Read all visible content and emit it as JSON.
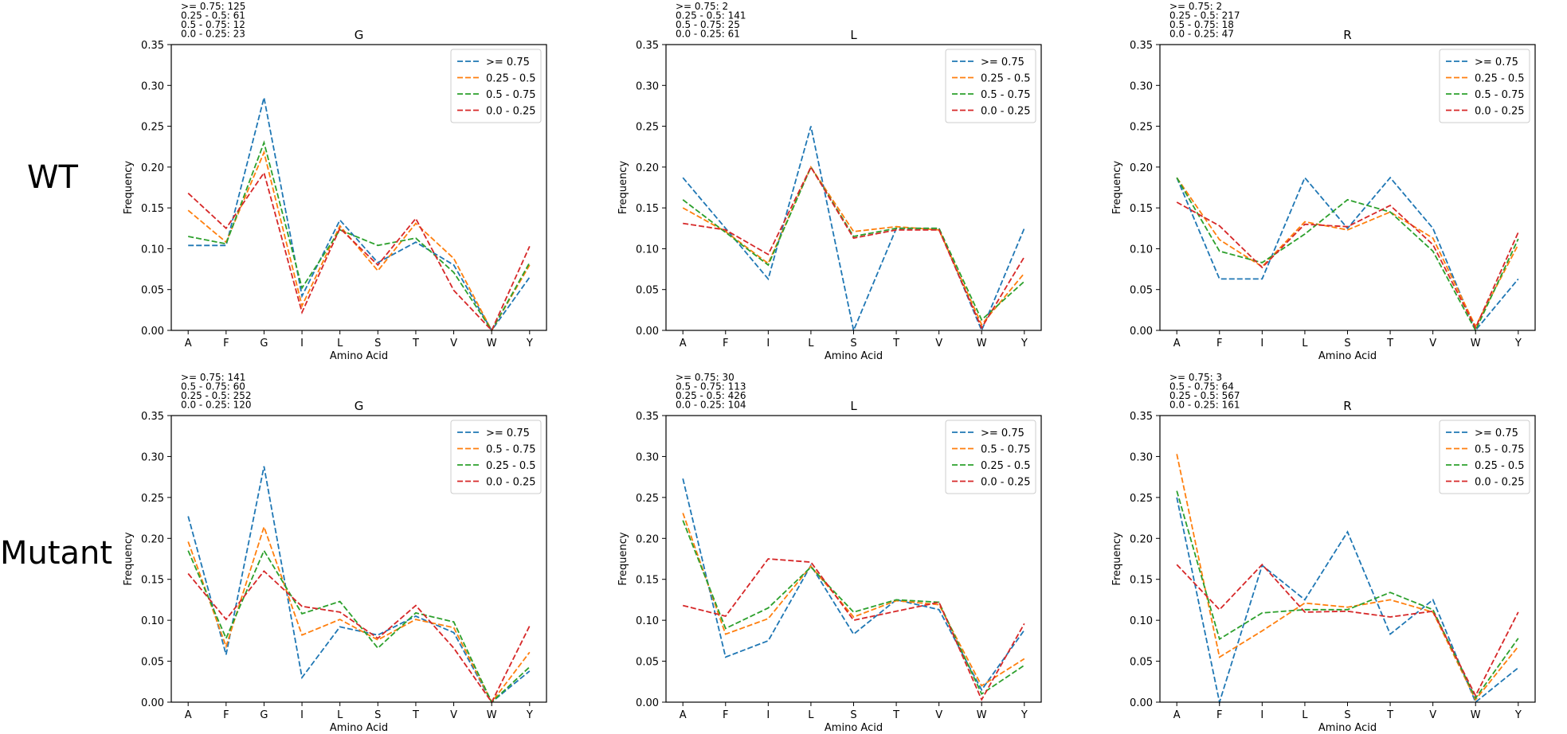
{
  "row_labels": [
    "WT",
    "Mutant"
  ],
  "colors": {
    "blue": "#1f77b4",
    "orange": "#ff7f0e",
    "green": "#2ca02c",
    "red": "#d62728"
  },
  "chart_data": [
    {
      "type": "line",
      "title": "G",
      "xlabel": "Amino Acid",
      "ylabel": "Frequency",
      "ylim": [
        0,
        0.35
      ],
      "yticks": [
        "0.00",
        "0.05",
        "0.10",
        "0.15",
        "0.20",
        "0.25",
        "0.30",
        "0.35"
      ],
      "grid": false,
      "legend": "top-right",
      "categories": [
        "A",
        "F",
        "G",
        "I",
        "L",
        "S",
        "T",
        "V",
        "W",
        "Y"
      ],
      "annotation": [
        ">= 0.75: 125",
        "0.25 - 0.5: 61",
        "0.5 - 0.75: 12",
        "0.0 - 0.25: 23"
      ],
      "series": [
        {
          "name": ">= 0.75",
          "color": "#1f77b4",
          "values": [
            0.104,
            0.104,
            0.285,
            0.042,
            0.135,
            0.083,
            0.108,
            0.08,
            0.0,
            0.065
          ]
        },
        {
          "name": "0.25 - 0.5",
          "color": "#ff7f0e",
          "values": [
            0.147,
            0.108,
            0.218,
            0.03,
            0.128,
            0.073,
            0.131,
            0.088,
            0.0,
            0.08
          ]
        },
        {
          "name": "0.5 - 0.75",
          "color": "#2ca02c",
          "values": [
            0.115,
            0.106,
            0.23,
            0.052,
            0.123,
            0.104,
            0.113,
            0.071,
            0.0,
            0.083
          ]
        },
        {
          "name": "0.0 - 0.25",
          "color": "#d62728",
          "values": [
            0.168,
            0.125,
            0.193,
            0.022,
            0.125,
            0.08,
            0.137,
            0.049,
            0.0,
            0.103
          ]
        }
      ]
    },
    {
      "type": "line",
      "title": "L",
      "xlabel": "Amino Acid",
      "ylabel": "Frequency",
      "ylim": [
        0,
        0.35
      ],
      "yticks": [
        "0.00",
        "0.05",
        "0.10",
        "0.15",
        "0.20",
        "0.25",
        "0.30",
        "0.35"
      ],
      "grid": false,
      "legend": "top-right",
      "categories": [
        "A",
        "F",
        "I",
        "L",
        "S",
        "T",
        "V",
        "W",
        "Y"
      ],
      "annotation": [
        ">= 0.75: 2",
        "0.25 - 0.5: 141",
        "0.5 - 0.75: 25",
        "0.0 - 0.25: 61"
      ],
      "series": [
        {
          "name": ">= 0.75",
          "color": "#1f77b4",
          "values": [
            0.187,
            0.125,
            0.063,
            0.25,
            0.0,
            0.125,
            0.125,
            0.0,
            0.125
          ]
        },
        {
          "name": "0.25 - 0.5",
          "color": "#ff7f0e",
          "values": [
            0.15,
            0.121,
            0.082,
            0.2,
            0.121,
            0.127,
            0.123,
            0.007,
            0.07
          ]
        },
        {
          "name": "0.5 - 0.75",
          "color": "#2ca02c",
          "values": [
            0.16,
            0.12,
            0.08,
            0.2,
            0.115,
            0.125,
            0.125,
            0.013,
            0.06
          ]
        },
        {
          "name": "0.0 - 0.25",
          "color": "#d62728",
          "values": [
            0.131,
            0.123,
            0.093,
            0.2,
            0.113,
            0.123,
            0.123,
            0.003,
            0.09
          ]
        }
      ]
    },
    {
      "type": "line",
      "title": "R",
      "xlabel": "Amino Acid",
      "ylabel": "Frequency",
      "ylim": [
        0,
        0.35
      ],
      "yticks": [
        "0.00",
        "0.05",
        "0.10",
        "0.15",
        "0.20",
        "0.25",
        "0.30",
        "0.35"
      ],
      "grid": false,
      "legend": "top-right",
      "categories": [
        "A",
        "F",
        "I",
        "L",
        "S",
        "T",
        "V",
        "W",
        "Y"
      ],
      "annotation": [
        ">= 0.75: 2",
        "0.25 - 0.5: 217",
        "0.5 - 0.75: 18",
        "0.0 - 0.25: 47"
      ],
      "series": [
        {
          "name": ">= 0.75",
          "color": "#1f77b4",
          "values": [
            0.187,
            0.063,
            0.063,
            0.187,
            0.125,
            0.187,
            0.125,
            0.0,
            0.063
          ]
        },
        {
          "name": "0.25 - 0.5",
          "color": "#ff7f0e",
          "values": [
            0.187,
            0.111,
            0.078,
            0.133,
            0.123,
            0.145,
            0.113,
            0.005,
            0.105
          ]
        },
        {
          "name": "0.5 - 0.75",
          "color": "#2ca02c",
          "values": [
            0.187,
            0.097,
            0.083,
            0.118,
            0.16,
            0.145,
            0.097,
            0.0,
            0.112
          ]
        },
        {
          "name": "0.0 - 0.25",
          "color": "#d62728",
          "values": [
            0.157,
            0.128,
            0.077,
            0.13,
            0.127,
            0.153,
            0.105,
            0.003,
            0.12
          ]
        }
      ]
    },
    {
      "type": "line",
      "title": "G",
      "xlabel": "Amino Acid",
      "ylabel": "Frequency",
      "ylim": [
        0,
        0.35
      ],
      "yticks": [
        "0.00",
        "0.05",
        "0.10",
        "0.15",
        "0.20",
        "0.25",
        "0.30",
        "0.35"
      ],
      "grid": false,
      "legend": "top-right",
      "categories": [
        "A",
        "F",
        "G",
        "I",
        "L",
        "S",
        "T",
        "V",
        "W",
        "Y"
      ],
      "annotation": [
        ">= 0.75: 141",
        "0.5 - 0.75: 60",
        "0.25 - 0.5: 252",
        "0.0 - 0.25: 120"
      ],
      "series": [
        {
          "name": ">= 0.75",
          "color": "#1f77b4",
          "values": [
            0.227,
            0.058,
            0.288,
            0.03,
            0.092,
            0.082,
            0.105,
            0.085,
            0.0,
            0.038
          ]
        },
        {
          "name": "0.5 - 0.75",
          "color": "#ff7f0e",
          "values": [
            0.196,
            0.068,
            0.214,
            0.082,
            0.101,
            0.076,
            0.101,
            0.091,
            0.0,
            0.061
          ]
        },
        {
          "name": "0.25 - 0.5",
          "color": "#2ca02c",
          "values": [
            0.185,
            0.078,
            0.185,
            0.108,
            0.123,
            0.066,
            0.109,
            0.098,
            0.0,
            0.043
          ]
        },
        {
          "name": "0.0 - 0.25",
          "color": "#d62728",
          "values": [
            0.157,
            0.101,
            0.16,
            0.117,
            0.11,
            0.078,
            0.118,
            0.066,
            0.0,
            0.093
          ]
        }
      ]
    },
    {
      "type": "line",
      "title": "L",
      "xlabel": "Amino Acid",
      "ylabel": "Frequency",
      "ylim": [
        0,
        0.35
      ],
      "yticks": [
        "0.00",
        "0.05",
        "0.10",
        "0.15",
        "0.20",
        "0.25",
        "0.30",
        "0.35"
      ],
      "grid": false,
      "legend": "top-right",
      "categories": [
        "A",
        "F",
        "I",
        "L",
        "S",
        "T",
        "V",
        "W",
        "Y"
      ],
      "annotation": [
        ">= 0.75: 30",
        "0.5 - 0.75: 113",
        "0.25 - 0.5: 426",
        "0.0 - 0.25: 104"
      ],
      "series": [
        {
          "name": ">= 0.75",
          "color": "#1f77b4",
          "values": [
            0.273,
            0.055,
            0.075,
            0.167,
            0.083,
            0.125,
            0.113,
            0.015,
            0.088
          ]
        },
        {
          "name": "0.5 - 0.75",
          "color": "#ff7f0e",
          "values": [
            0.231,
            0.083,
            0.102,
            0.166,
            0.104,
            0.124,
            0.119,
            0.02,
            0.053
          ]
        },
        {
          "name": "0.25 - 0.5",
          "color": "#2ca02c",
          "values": [
            0.222,
            0.09,
            0.115,
            0.165,
            0.11,
            0.125,
            0.122,
            0.01,
            0.045
          ]
        },
        {
          "name": "0.0 - 0.25",
          "color": "#d62728",
          "values": [
            0.118,
            0.105,
            0.175,
            0.171,
            0.1,
            0.111,
            0.122,
            0.003,
            0.096
          ]
        }
      ]
    },
    {
      "type": "line",
      "title": "R",
      "xlabel": "Amino Acid",
      "ylabel": "Frequency",
      "ylim": [
        0,
        0.35
      ],
      "yticks": [
        "0.00",
        "0.05",
        "0.10",
        "0.15",
        "0.20",
        "0.25",
        "0.30",
        "0.35"
      ],
      "grid": false,
      "legend": "top-right",
      "categories": [
        "A",
        "F",
        "I",
        "L",
        "S",
        "T",
        "V",
        "W",
        "Y"
      ],
      "annotation": [
        ">= 0.75: 3",
        "0.5 - 0.75: 64",
        "0.25 - 0.5: 567",
        "0.0 - 0.25: 161"
      ],
      "series": [
        {
          "name": ">= 0.75",
          "color": "#1f77b4",
          "values": [
            0.25,
            0.0,
            0.167,
            0.125,
            0.208,
            0.083,
            0.125,
            0.0,
            0.042
          ]
        },
        {
          "name": "0.5 - 0.75",
          "color": "#ff7f0e",
          "values": [
            0.303,
            0.055,
            0.087,
            0.121,
            0.116,
            0.125,
            0.11,
            0.003,
            0.068
          ]
        },
        {
          "name": "0.25 - 0.5",
          "color": "#2ca02c",
          "values": [
            0.258,
            0.077,
            0.109,
            0.113,
            0.113,
            0.134,
            0.113,
            0.005,
            0.078
          ]
        },
        {
          "name": "0.0 - 0.25",
          "color": "#d62728",
          "values": [
            0.168,
            0.113,
            0.168,
            0.11,
            0.111,
            0.104,
            0.111,
            0.008,
            0.11
          ]
        }
      ]
    }
  ]
}
